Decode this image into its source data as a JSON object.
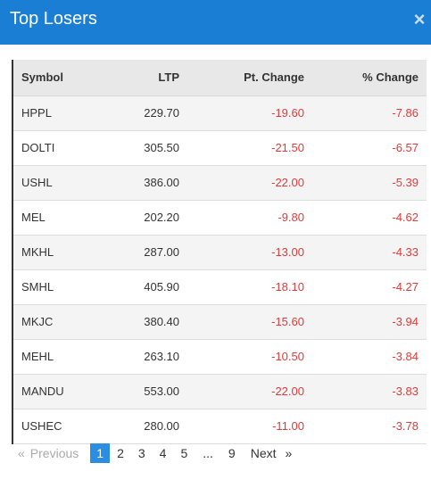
{
  "header": {
    "title": "Top Losers",
    "close_label": "×"
  },
  "table": {
    "columns": [
      "Symbol",
      "LTP",
      "Pt. Change",
      "% Change"
    ],
    "rows": [
      {
        "symbol": "HPPL",
        "ltp": "229.70",
        "pt_change": "-19.60",
        "pct_change": "-7.86"
      },
      {
        "symbol": "DOLTI",
        "ltp": "305.50",
        "pt_change": "-21.50",
        "pct_change": "-6.57"
      },
      {
        "symbol": "USHL",
        "ltp": "386.00",
        "pt_change": "-22.00",
        "pct_change": "-5.39"
      },
      {
        "symbol": "MEL",
        "ltp": "202.20",
        "pt_change": "-9.80",
        "pct_change": "-4.62"
      },
      {
        "symbol": "MKHL",
        "ltp": "287.00",
        "pt_change": "-13.00",
        "pct_change": "-4.33"
      },
      {
        "symbol": "SMHL",
        "ltp": "405.90",
        "pt_change": "-18.10",
        "pct_change": "-4.27"
      },
      {
        "symbol": "MKJC",
        "ltp": "380.40",
        "pt_change": "-15.60",
        "pct_change": "-3.94"
      },
      {
        "symbol": "MEHL",
        "ltp": "263.10",
        "pt_change": "-10.50",
        "pct_change": "-3.84"
      },
      {
        "symbol": "MANDU",
        "ltp": "553.00",
        "pt_change": "-22.00",
        "pct_change": "-3.83"
      },
      {
        "symbol": "USHEC",
        "ltp": "280.00",
        "pt_change": "-11.00",
        "pct_change": "-3.78"
      }
    ]
  },
  "pagination": {
    "prev_arrow": "«",
    "prev_label": "Previous",
    "pages": [
      "1",
      "2",
      "3",
      "4",
      "5"
    ],
    "ellipsis": "...",
    "last_page": "9",
    "next_label": "Next",
    "next_arrow": "»",
    "current_page": "1"
  },
  "colors": {
    "header_bg": "#1a7fd4",
    "negative": "#e13a3a",
    "active_page": "#2b8ee0"
  }
}
